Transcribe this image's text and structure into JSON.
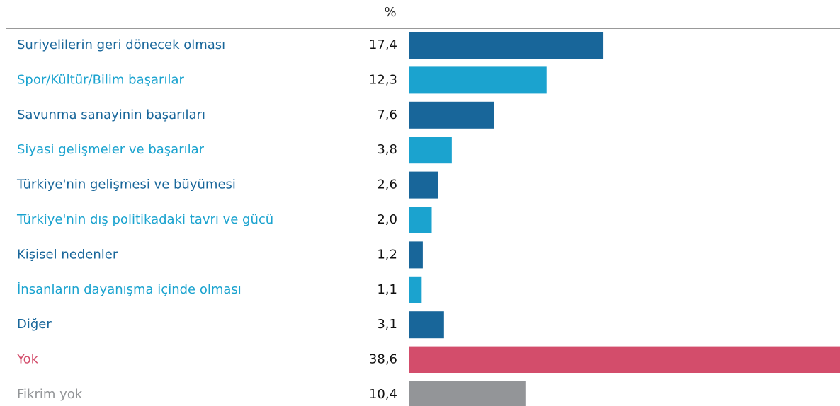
{
  "chart_data": {
    "type": "bar",
    "orientation": "horizontal",
    "value_header": "%",
    "categories": [
      "Suriyelilerin geri dönecek olması",
      "Spor/Kültür/Bilim başarılar",
      "Savunma sanayinin başarıları",
      "Siyasi gelişmeler ve başarılar",
      "Türkiye'nin gelişmesi ve büyümesi",
      "Türkiye'nin dış politikadaki tavrı ve gücü",
      "Kişisel nedenler",
      "İnsanların dayanışma içinde olması",
      "Diğer",
      "Yok",
      "Fikrim yok"
    ],
    "values": [
      17.4,
      12.3,
      7.6,
      3.8,
      2.6,
      2.0,
      1.2,
      1.1,
      3.1,
      38.6,
      10.4
    ],
    "value_labels": [
      "17,4",
      "12,3",
      "7,6",
      "3,8",
      "2,6",
      "2,0",
      "1,2",
      "1,1",
      "3,1",
      "38,6",
      "10,4"
    ],
    "colors": [
      "#18669a",
      "#1ba3cf",
      "#18669a",
      "#1ba3cf",
      "#18669a",
      "#1ba3cf",
      "#18669a",
      "#1ba3cf",
      "#18669a",
      "#d34d6b",
      "#939598"
    ]
  }
}
